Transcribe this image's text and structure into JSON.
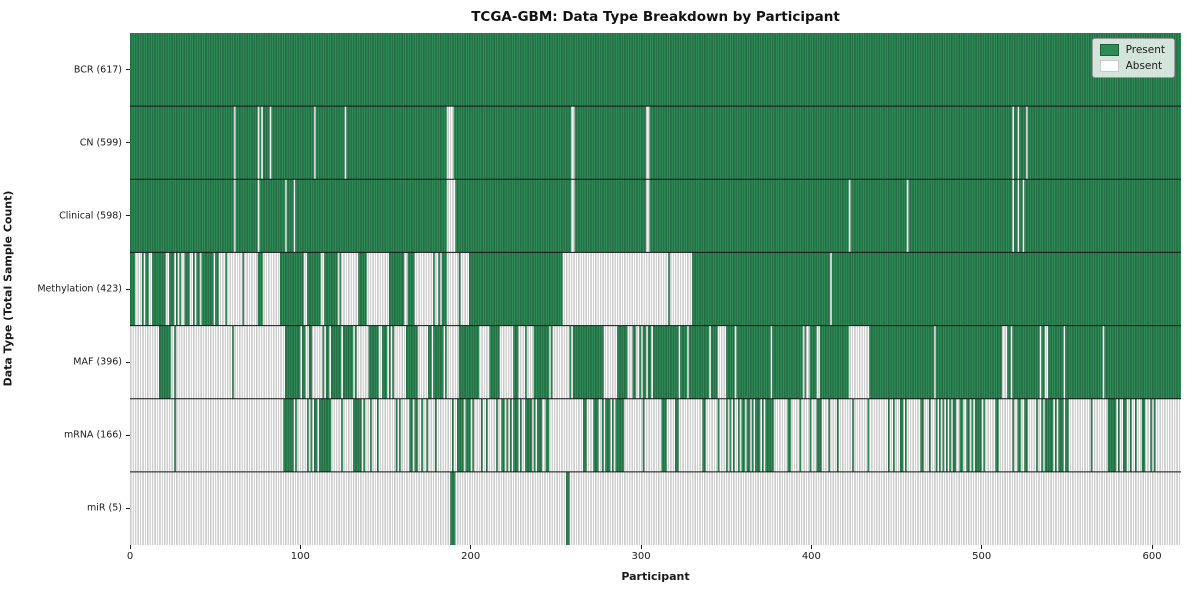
{
  "title": "TCGA-GBM: Data Type Breakdown by Participant",
  "xlabel": "Participant",
  "ylabel": "Data Type (Total Sample Count)",
  "legend": {
    "present_label": "Present",
    "absent_label": "Absent",
    "position": "upper right"
  },
  "colors": {
    "present": "#2e8b57",
    "absent": "#ffffff",
    "bar_edge_stripe": "rgba(0,0,0,0.42)",
    "row_divider": "#141414",
    "text": "#1a1a1a"
  },
  "chart_data": {
    "type": "heatmap",
    "title": "TCGA-GBM: Data Type Breakdown by Participant",
    "xlabel": "Participant",
    "ylabel": "Data Type (Total Sample Count)",
    "x_ticks": [
      0,
      100,
      200,
      300,
      400,
      500,
      600
    ],
    "xlim": [
      0,
      617
    ],
    "n_participants": 617,
    "grid": false,
    "legend_entries": [
      "Present",
      "Absent"
    ],
    "rows": [
      {
        "label": "BCR (617)",
        "name": "BCR",
        "total": 617,
        "segments": [
          [
            0,
            617,
            "p"
          ]
        ]
      },
      {
        "label": "CN (599)",
        "name": "CN",
        "total": 599,
        "segments": [
          [
            0,
            61,
            "p"
          ],
          [
            61,
            62,
            "a"
          ],
          [
            62,
            75,
            "p"
          ],
          [
            75,
            76,
            "a"
          ],
          [
            76,
            77,
            "p"
          ],
          [
            77,
            78,
            "a"
          ],
          [
            78,
            82,
            "p"
          ],
          [
            82,
            83,
            "a"
          ],
          [
            83,
            108,
            "p"
          ],
          [
            108,
            109,
            "a"
          ],
          [
            109,
            126,
            "p"
          ],
          [
            126,
            127,
            "a"
          ],
          [
            127,
            186,
            "p"
          ],
          [
            186,
            190,
            "a"
          ],
          [
            190,
            259,
            "p"
          ],
          [
            259,
            261,
            "a"
          ],
          [
            261,
            303,
            "p"
          ],
          [
            303,
            305,
            "a"
          ],
          [
            305,
            518,
            "p"
          ],
          [
            518,
            519,
            "a"
          ],
          [
            519,
            521,
            "p"
          ],
          [
            521,
            522,
            "a"
          ],
          [
            522,
            526,
            "p"
          ],
          [
            526,
            527,
            "a"
          ],
          [
            527,
            617,
            "p"
          ]
        ]
      },
      {
        "label": "Clinical (598)",
        "name": "Clinical",
        "total": 598,
        "segments": [
          [
            0,
            61,
            "p"
          ],
          [
            61,
            62,
            "a"
          ],
          [
            62,
            75,
            "p"
          ],
          [
            75,
            76,
            "a"
          ],
          [
            76,
            91,
            "p"
          ],
          [
            91,
            92,
            "a"
          ],
          [
            92,
            96,
            "p"
          ],
          [
            96,
            97,
            "a"
          ],
          [
            97,
            186,
            "p"
          ],
          [
            186,
            191,
            "a"
          ],
          [
            191,
            259,
            "p"
          ],
          [
            259,
            261,
            "a"
          ],
          [
            261,
            303,
            "p"
          ],
          [
            303,
            305,
            "a"
          ],
          [
            305,
            422,
            "p"
          ],
          [
            422,
            423,
            "a"
          ],
          [
            423,
            456,
            "p"
          ],
          [
            456,
            457,
            "a"
          ],
          [
            457,
            518,
            "p"
          ],
          [
            518,
            519,
            "a"
          ],
          [
            519,
            521,
            "p"
          ],
          [
            521,
            522,
            "a"
          ],
          [
            522,
            524,
            "p"
          ],
          [
            524,
            525,
            "a"
          ],
          [
            525,
            617,
            "p"
          ]
        ]
      },
      {
        "label": "Methylation (423)",
        "name": "Methylation",
        "total": 423,
        "segments": [
          [
            0,
            3,
            "p"
          ],
          [
            3,
            58,
            "m",
            0.55
          ],
          [
            58,
            66,
            "a"
          ],
          [
            66,
            67,
            "p"
          ],
          [
            67,
            75,
            "a"
          ],
          [
            75,
            78,
            "p"
          ],
          [
            78,
            88,
            "a"
          ],
          [
            88,
            102,
            "p"
          ],
          [
            102,
            103,
            "a"
          ],
          [
            103,
            112,
            "m",
            0.85
          ],
          [
            112,
            114,
            "a"
          ],
          [
            114,
            122,
            "p"
          ],
          [
            122,
            134,
            "m",
            0.12
          ],
          [
            134,
            139,
            "p"
          ],
          [
            139,
            152,
            "m",
            0.15
          ],
          [
            152,
            161,
            "p"
          ],
          [
            161,
            163,
            "a"
          ],
          [
            163,
            167,
            "p"
          ],
          [
            167,
            183,
            "m",
            0.12
          ],
          [
            183,
            186,
            "p"
          ],
          [
            186,
            199,
            "m",
            0.06
          ],
          [
            199,
            254,
            "p"
          ],
          [
            254,
            316,
            "a"
          ],
          [
            316,
            317,
            "p"
          ],
          [
            317,
            330,
            "a"
          ],
          [
            330,
            411,
            "p"
          ],
          [
            411,
            412,
            "a"
          ],
          [
            412,
            617,
            "p"
          ]
        ]
      },
      {
        "label": "MAF (396)",
        "name": "MAF",
        "total": 396,
        "segments": [
          [
            0,
            17,
            "a"
          ],
          [
            17,
            24,
            "p"
          ],
          [
            24,
            26,
            "a"
          ],
          [
            26,
            27,
            "p"
          ],
          [
            27,
            60,
            "a"
          ],
          [
            60,
            61,
            "p"
          ],
          [
            61,
            90,
            "a"
          ],
          [
            90,
            102,
            "m",
            0.75
          ],
          [
            102,
            118,
            "m",
            0.5
          ],
          [
            118,
            124,
            "p"
          ],
          [
            124,
            125,
            "a"
          ],
          [
            125,
            130,
            "p"
          ],
          [
            130,
            140,
            "m",
            0.3
          ],
          [
            140,
            155,
            "m",
            0.7
          ],
          [
            155,
            162,
            "a"
          ],
          [
            162,
            169,
            "p"
          ],
          [
            169,
            174,
            "a"
          ],
          [
            174,
            186,
            "m",
            0.75
          ],
          [
            186,
            193,
            "a"
          ],
          [
            193,
            205,
            "p"
          ],
          [
            205,
            211,
            "a"
          ],
          [
            211,
            217,
            "p"
          ],
          [
            217,
            225,
            "a"
          ],
          [
            225,
            237,
            "m",
            0.6
          ],
          [
            237,
            246,
            "p"
          ],
          [
            246,
            258,
            "m",
            0.12
          ],
          [
            258,
            278,
            "m",
            0.88
          ],
          [
            278,
            286,
            "a"
          ],
          [
            286,
            291,
            "p"
          ],
          [
            291,
            301,
            "m",
            0.4
          ],
          [
            301,
            310,
            "m",
            0.8
          ],
          [
            310,
            322,
            "p"
          ],
          [
            322,
            323,
            "a"
          ],
          [
            323,
            327,
            "p"
          ],
          [
            327,
            328,
            "a"
          ],
          [
            328,
            340,
            "p"
          ],
          [
            340,
            343,
            "m",
            0.3
          ],
          [
            343,
            345,
            "p"
          ],
          [
            345,
            350,
            "a"
          ],
          [
            350,
            355,
            "p"
          ],
          [
            355,
            356,
            "a"
          ],
          [
            356,
            376,
            "p"
          ],
          [
            376,
            377,
            "a"
          ],
          [
            377,
            395,
            "p"
          ],
          [
            395,
            405,
            "m",
            0.55
          ],
          [
            405,
            422,
            "p"
          ],
          [
            422,
            434,
            "m",
            0.3
          ],
          [
            434,
            472,
            "p"
          ],
          [
            472,
            473,
            "a"
          ],
          [
            473,
            512,
            "p"
          ],
          [
            512,
            518,
            "m",
            0.35
          ],
          [
            518,
            534,
            "p"
          ],
          [
            534,
            540,
            "m",
            0.35
          ],
          [
            540,
            548,
            "p"
          ],
          [
            548,
            549,
            "a"
          ],
          [
            549,
            571,
            "p"
          ],
          [
            571,
            572,
            "a"
          ],
          [
            572,
            617,
            "p"
          ]
        ]
      },
      {
        "label": "mRNA (166)",
        "name": "mRNA",
        "total": 166,
        "segments": [
          [
            0,
            26,
            "a"
          ],
          [
            26,
            27,
            "p"
          ],
          [
            27,
            90,
            "a"
          ],
          [
            90,
            96,
            "p"
          ],
          [
            96,
            112,
            "m",
            0.4
          ],
          [
            112,
            118,
            "p"
          ],
          [
            118,
            124,
            "a"
          ],
          [
            124,
            125,
            "p"
          ],
          [
            125,
            131,
            "a"
          ],
          [
            131,
            136,
            "p"
          ],
          [
            136,
            162,
            "m",
            0.25
          ],
          [
            162,
            175,
            "m",
            0.45
          ],
          [
            175,
            192,
            "m",
            0.1
          ],
          [
            192,
            205,
            "m",
            0.6
          ],
          [
            205,
            217,
            "m",
            0.35
          ],
          [
            217,
            235,
            "m",
            0.5
          ],
          [
            235,
            252,
            "m",
            0.55
          ],
          [
            252,
            272,
            "m",
            0.08
          ],
          [
            272,
            290,
            "m",
            0.65
          ],
          [
            290,
            310,
            "m",
            0.12
          ],
          [
            310,
            347,
            "m",
            0.12
          ],
          [
            347,
            367,
            "m",
            0.3
          ],
          [
            367,
            378,
            "m",
            0.7
          ],
          [
            378,
            400,
            "m",
            0.15
          ],
          [
            400,
            415,
            "m",
            0.45
          ],
          [
            415,
            447,
            "m",
            0.12
          ],
          [
            447,
            483,
            "m",
            0.3
          ],
          [
            483,
            502,
            "m",
            0.6
          ],
          [
            502,
            533,
            "m",
            0.25
          ],
          [
            533,
            551,
            "m",
            0.55
          ],
          [
            551,
            570,
            "m",
            0.2
          ],
          [
            570,
            582,
            "m",
            0.65
          ],
          [
            582,
            594,
            "m",
            0.25
          ],
          [
            594,
            603,
            "m",
            0.7
          ],
          [
            603,
            617,
            "a"
          ]
        ]
      },
      {
        "label": "miR (5)",
        "name": "miR",
        "total": 5,
        "segments": [
          [
            0,
            188,
            "a"
          ],
          [
            188,
            191,
            "p"
          ],
          [
            191,
            256,
            "a"
          ],
          [
            256,
            258,
            "p"
          ],
          [
            258,
            617,
            "a"
          ]
        ]
      }
    ]
  }
}
